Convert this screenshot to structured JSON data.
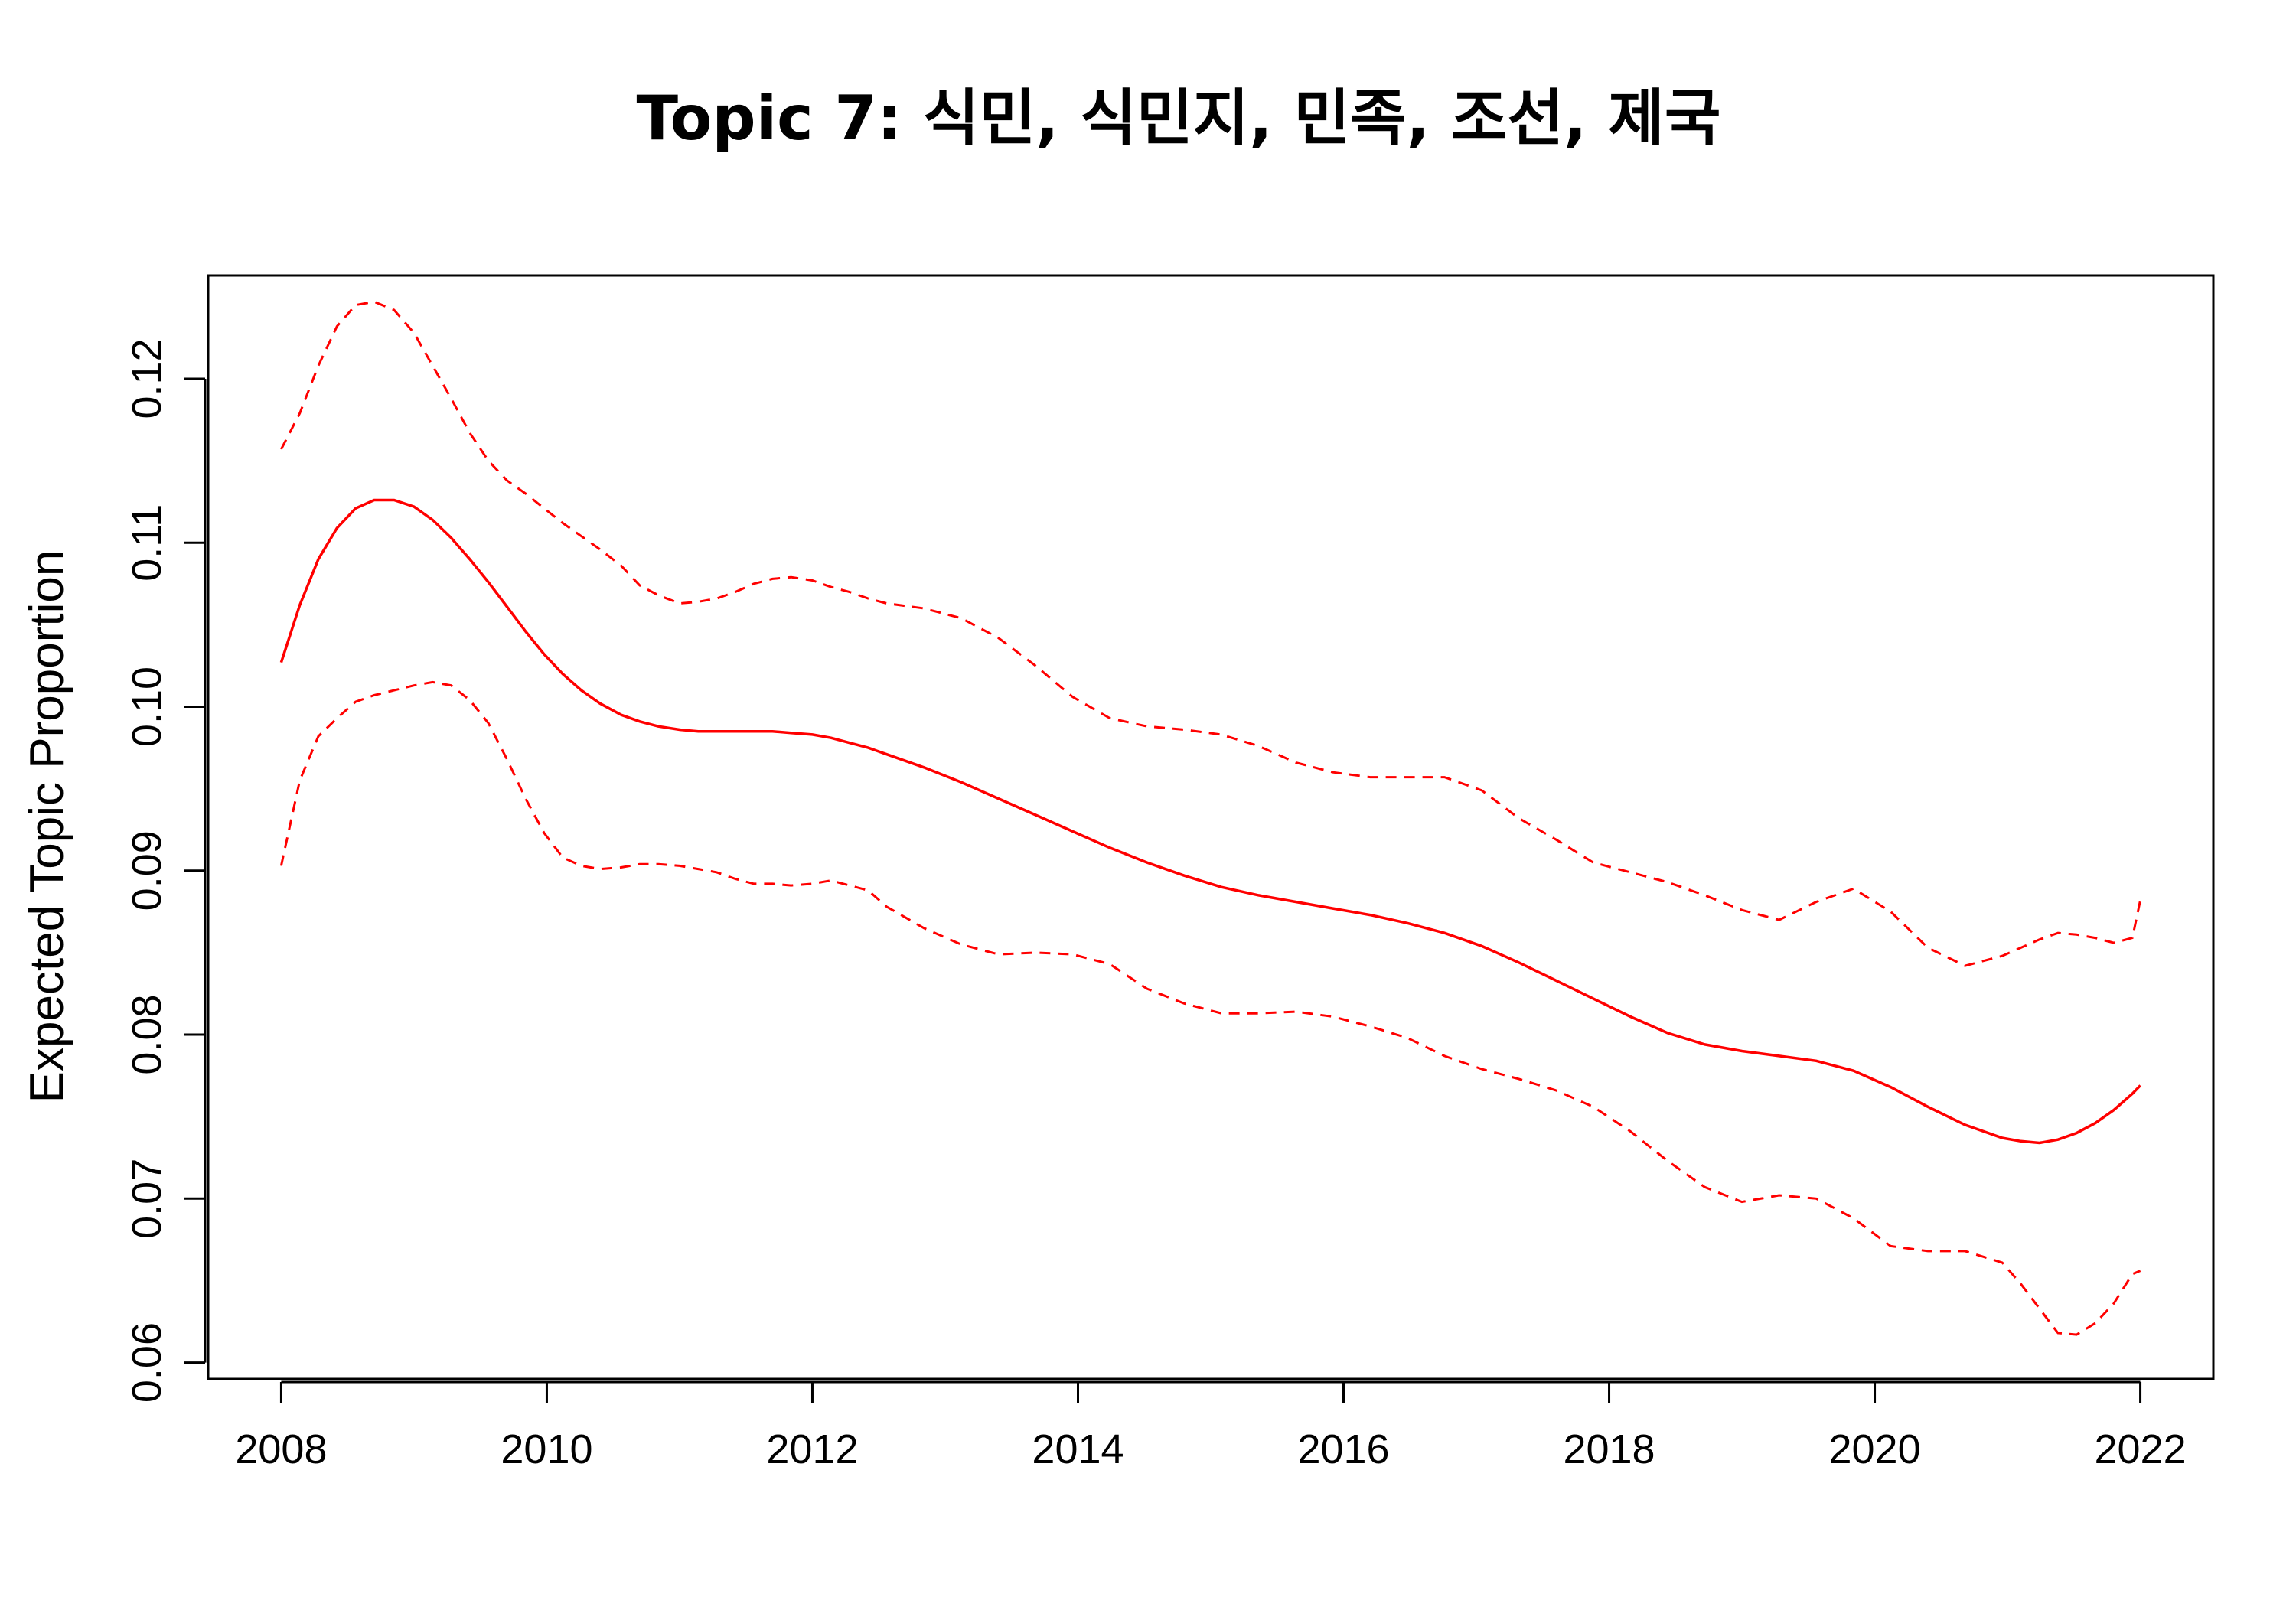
{
  "chart_data": {
    "type": "line",
    "title": "Topic 7: 식민, 식민지, 민족, 조선, 제국",
    "xlabel": "",
    "ylabel": "Expected Topic Proportion",
    "xlim": [
      2007.45,
      2022.55
    ],
    "ylim": [
      0.059,
      0.1263
    ],
    "x_ticks": [
      2008,
      2010,
      2012,
      2014,
      2016,
      2018,
      2020,
      2022
    ],
    "y_ticks": [
      0.06,
      0.07,
      0.08,
      0.09,
      0.1,
      0.11,
      0.12
    ],
    "y_tick_labels": [
      "0.06",
      "0.07",
      "0.08",
      "0.09",
      "0.10",
      "0.11",
      "0.12"
    ],
    "grid": false,
    "legend": "none",
    "color": "#ff0000",
    "series": [
      {
        "style": "solid",
        "x": [
          2008.0,
          2008.14,
          2008.28,
          2008.42,
          2008.56,
          2008.7,
          2008.85,
          2009.0,
          2009.14,
          2009.28,
          2009.42,
          2009.56,
          2009.7,
          2009.84,
          2009.98,
          2010.12,
          2010.26,
          2010.4,
          2010.56,
          2010.7,
          2010.84,
          2011.0,
          2011.14,
          2011.28,
          2011.42,
          2011.56,
          2011.7,
          2011.84,
          2012.0,
          2012.14,
          2012.28,
          2012.42,
          2012.56,
          2012.84,
          2013.12,
          2013.4,
          2013.68,
          2013.96,
          2014.24,
          2014.52,
          2014.8,
          2015.08,
          2015.36,
          2015.64,
          2015.92,
          2016.2,
          2016.48,
          2016.76,
          2017.04,
          2017.32,
          2017.6,
          2017.88,
          2018.16,
          2018.44,
          2018.72,
          2019.0,
          2019.28,
          2019.56,
          2019.84,
          2020.12,
          2020.4,
          2020.68,
          2020.96,
          2021.1,
          2021.24,
          2021.38,
          2021.52,
          2021.66,
          2021.8,
          2021.94,
          2022.0
        ],
        "y": [
          0.1027,
          0.1062,
          0.109,
          0.1109,
          0.1121,
          0.1126,
          0.1126,
          0.1122,
          0.1114,
          0.1103,
          0.109,
          0.1076,
          0.1061,
          0.1046,
          0.1032,
          0.102,
          0.101,
          0.1002,
          0.0995,
          0.0991,
          0.0988,
          0.0986,
          0.0985,
          0.0985,
          0.0985,
          0.0985,
          0.0985,
          0.0984,
          0.0983,
          0.0981,
          0.0978,
          0.0975,
          0.0971,
          0.0963,
          0.0954,
          0.0944,
          0.0934,
          0.0924,
          0.0914,
          0.0905,
          0.0897,
          0.089,
          0.0885,
          0.0881,
          0.0877,
          0.0873,
          0.0868,
          0.0862,
          0.0854,
          0.0844,
          0.0833,
          0.0822,
          0.0811,
          0.0801,
          0.0794,
          0.079,
          0.0787,
          0.0784,
          0.0778,
          0.0768,
          0.0756,
          0.0745,
          0.0737,
          0.0735,
          0.0734,
          0.0736,
          0.074,
          0.0746,
          0.0754,
          0.0764,
          0.0769
        ]
      },
      {
        "style": "dashed",
        "x": [
          2008.0,
          2008.14,
          2008.28,
          2008.42,
          2008.56,
          2008.7,
          2008.85,
          2009.0,
          2009.14,
          2009.28,
          2009.42,
          2009.56,
          2009.7,
          2009.84,
          2009.98,
          2010.12,
          2010.26,
          2010.4,
          2010.56,
          2010.7,
          2010.84,
          2011.0,
          2011.14,
          2011.28,
          2011.42,
          2011.56,
          2011.7,
          2011.84,
          2012.0,
          2012.14,
          2012.28,
          2012.42,
          2012.56,
          2012.84,
          2013.12,
          2013.4,
          2013.68,
          2013.96,
          2014.24,
          2014.52,
          2014.8,
          2015.08,
          2015.36,
          2015.64,
          2015.92,
          2016.2,
          2016.48,
          2016.76,
          2017.04,
          2017.32,
          2017.6,
          2017.88,
          2018.16,
          2018.44,
          2018.72,
          2019.0,
          2019.28,
          2019.56,
          2019.84,
          2020.12,
          2020.4,
          2020.68,
          2020.96,
          2021.1,
          2021.24,
          2021.38,
          2021.52,
          2021.66,
          2021.8,
          2021.94,
          2022.0
        ],
        "y": [
          0.1157,
          0.1179,
          0.1208,
          0.1232,
          0.1245,
          0.1247,
          0.1242,
          0.1228,
          0.1208,
          0.1188,
          0.1167,
          0.115,
          0.1138,
          0.113,
          0.1121,
          0.1112,
          0.1104,
          0.1096,
          0.1086,
          0.1074,
          0.1068,
          0.1063,
          0.1064,
          0.1066,
          0.107,
          0.1075,
          0.1078,
          0.1079,
          0.1077,
          0.1073,
          0.107,
          0.1066,
          0.1063,
          0.106,
          0.1054,
          0.1042,
          0.1025,
          0.1006,
          0.0993,
          0.0988,
          0.0986,
          0.0983,
          0.0976,
          0.0966,
          0.096,
          0.0957,
          0.0957,
          0.0957,
          0.0949,
          0.0932,
          0.0919,
          0.0905,
          0.0899,
          0.0893,
          0.0885,
          0.0876,
          0.087,
          0.0881,
          0.0889,
          0.0875,
          0.0853,
          0.0842,
          0.0848,
          0.0853,
          0.0858,
          0.0862,
          0.0861,
          0.0859,
          0.0856,
          0.0859,
          0.0882
        ]
      },
      {
        "style": "dashed",
        "x": [
          2008.0,
          2008.14,
          2008.28,
          2008.42,
          2008.56,
          2008.7,
          2008.85,
          2009.0,
          2009.14,
          2009.28,
          2009.42,
          2009.56,
          2009.7,
          2009.84,
          2009.98,
          2010.12,
          2010.26,
          2010.4,
          2010.56,
          2010.7,
          2010.84,
          2011.0,
          2011.14,
          2011.28,
          2011.42,
          2011.56,
          2011.7,
          2011.84,
          2012.0,
          2012.14,
          2012.28,
          2012.42,
          2012.56,
          2012.84,
          2013.12,
          2013.4,
          2013.68,
          2013.96,
          2014.24,
          2014.52,
          2014.8,
          2015.08,
          2015.36,
          2015.64,
          2015.92,
          2016.2,
          2016.48,
          2016.76,
          2017.04,
          2017.32,
          2017.6,
          2017.88,
          2018.16,
          2018.44,
          2018.72,
          2019.0,
          2019.28,
          2019.56,
          2019.84,
          2020.12,
          2020.4,
          2020.68,
          2020.96,
          2021.1,
          2021.24,
          2021.38,
          2021.52,
          2021.66,
          2021.8,
          2021.94,
          2022.0
        ],
        "y": [
          0.0903,
          0.0955,
          0.0982,
          0.0993,
          0.1003,
          0.1007,
          0.101,
          0.1013,
          0.1015,
          0.1013,
          0.1004,
          0.099,
          0.0968,
          0.0944,
          0.0923,
          0.0908,
          0.0903,
          0.0901,
          0.0902,
          0.0904,
          0.0904,
          0.0903,
          0.0901,
          0.0899,
          0.0895,
          0.0892,
          0.0892,
          0.0891,
          0.0892,
          0.0894,
          0.0891,
          0.0888,
          0.0878,
          0.0865,
          0.0855,
          0.0849,
          0.085,
          0.0849,
          0.0843,
          0.0828,
          0.0819,
          0.0813,
          0.0813,
          0.0814,
          0.0811,
          0.0805,
          0.0798,
          0.0787,
          0.0779,
          0.0773,
          0.0766,
          0.0756,
          0.0741,
          0.0723,
          0.0707,
          0.0698,
          0.0702,
          0.07,
          0.0688,
          0.0671,
          0.0668,
          0.0668,
          0.0661,
          0.0648,
          0.0633,
          0.0618,
          0.0617,
          0.0624,
          0.0636,
          0.0654,
          0.0656
        ]
      }
    ]
  }
}
